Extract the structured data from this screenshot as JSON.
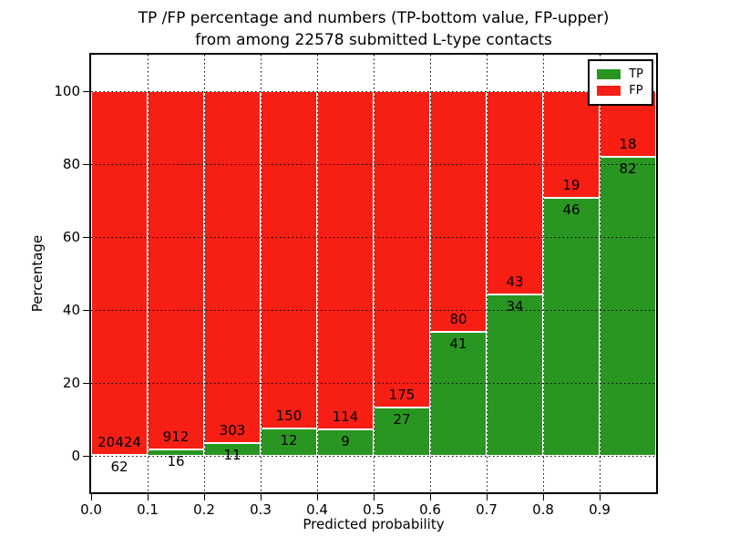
{
  "title": {
    "line1": "TP /FP percentage and numbers (TP-bottom value, FP-upper)",
    "line2": "from among 22578 submitted L-type contacts"
  },
  "chart_data": {
    "type": "bar",
    "stacked": true,
    "normalized_to_percent": true,
    "title": "TP /FP percentage and numbers (TP-bottom value, FP-upper) from among 22578 submitted L-type contacts",
    "total_contacts": 22578,
    "xlabel": "Predicted probability",
    "ylabel": "Percentage",
    "bin_edges": [
      0.0,
      0.1,
      0.2,
      0.3,
      0.4,
      0.5,
      0.6,
      0.7,
      0.8,
      0.9,
      1.0
    ],
    "series": [
      {
        "name": "TP",
        "color": "#2a9622",
        "counts": [
          62,
          16,
          11,
          12,
          9,
          27,
          41,
          34,
          46,
          82
        ],
        "percent": [
          0.3,
          1.72,
          3.5,
          7.41,
          7.32,
          13.37,
          33.88,
          44.16,
          70.77,
          82.0
        ]
      },
      {
        "name": "FP",
        "color": "#f71e14",
        "counts": [
          20424,
          912,
          303,
          150,
          114,
          175,
          80,
          43,
          19,
          18
        ],
        "percent": [
          99.7,
          98.28,
          96.5,
          92.59,
          92.68,
          86.63,
          66.12,
          55.84,
          29.23,
          18.0
        ]
      }
    ],
    "xticks": [
      "0.0",
      "0.1",
      "0.2",
      "0.3",
      "0.4",
      "0.5",
      "0.6",
      "0.7",
      "0.8",
      "0.9"
    ],
    "yticks": [
      0,
      20,
      40,
      60,
      80,
      100
    ],
    "xlim": [
      0,
      1
    ],
    "ylim": [
      -10,
      110
    ],
    "grid": true,
    "legend_position": "upper right"
  }
}
